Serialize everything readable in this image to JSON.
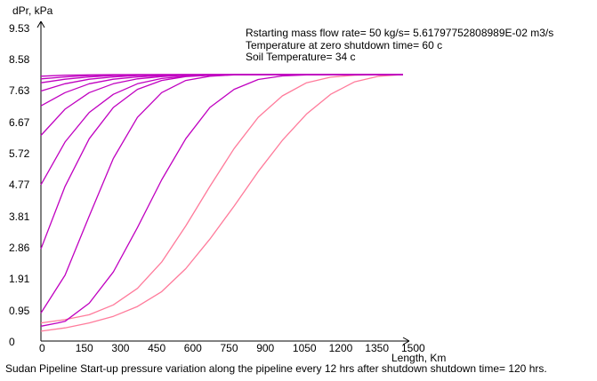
{
  "chart_data": {
    "type": "line",
    "ylabel": "dPr, kPa",
    "xlabel": "Length, Km",
    "y_ticks": [
      "9.53",
      "8.58",
      "7.63",
      "6.67",
      "5.72",
      "4.77",
      "3.81",
      "2.86",
      "1.91",
      "0.95",
      "0"
    ],
    "x_ticks": [
      "0",
      "150",
      "300",
      "450",
      "600",
      "750",
      "900",
      "1050",
      "1200",
      "1350",
      "1500"
    ],
    "xlim": [
      0,
      1500
    ],
    "ylim": [
      0,
      9.53
    ],
    "annotations": [
      "Rstarting mass flow rate= 50 kg/s= 5.61797752808989E-02 m3/s",
      "Temperature at zero shutdown time= 60 c",
      "Soil Temperature= 34 c"
    ],
    "caption": "Sudan Pipeline Start-up pressure variation along the pipeline every 12 hrs after shutdown  shutdown time= 120 hrs.",
    "colors": {
      "curves": "#c000c0",
      "early_curves": "#ff7b9b",
      "axis": "#000000"
    },
    "series": [
      {
        "x": [
          0,
          100,
          200,
          300,
          400,
          500,
          600,
          700,
          800,
          900,
          1000,
          1100,
          1200,
          1300,
          1400,
          1500
        ],
        "values": [
          0.3,
          0.4,
          0.55,
          0.75,
          1.05,
          1.5,
          2.2,
          3.1,
          4.1,
          5.15,
          6.1,
          6.9,
          7.5,
          7.88,
          8.05,
          8.1
        ]
      },
      {
        "x": [
          0,
          100,
          200,
          300,
          400,
          500,
          600,
          700,
          800,
          900,
          1000,
          1100,
          1200,
          1300,
          1400,
          1500
        ],
        "values": [
          0.55,
          0.65,
          0.8,
          1.1,
          1.6,
          2.4,
          3.5,
          4.7,
          5.85,
          6.8,
          7.45,
          7.85,
          8.02,
          8.08,
          8.1,
          8.1
        ]
      },
      {
        "x": [
          0,
          70,
          100,
          200,
          300,
          400,
          500,
          600,
          700,
          800,
          900,
          1000,
          1100,
          1200,
          1300,
          1400,
          1500
        ],
        "values": [
          0.45,
          0.55,
          0.6,
          1.15,
          2.1,
          3.45,
          4.9,
          6.15,
          7.1,
          7.65,
          7.95,
          8.06,
          8.09,
          8.1,
          8.1,
          8.1,
          8.1
        ]
      },
      {
        "x": [
          0,
          100,
          200,
          300,
          400,
          500,
          600,
          700,
          800,
          900,
          1000,
          1100,
          1200,
          1300,
          1400,
          1500
        ],
        "values": [
          0.85,
          2.0,
          3.8,
          5.55,
          6.8,
          7.55,
          7.92,
          8.05,
          8.09,
          8.1,
          8.1,
          8.1,
          8.1,
          8.1,
          8.1,
          8.1
        ]
      },
      {
        "x": [
          0,
          100,
          200,
          300,
          400,
          500,
          600,
          700,
          800,
          900,
          1000,
          1100,
          1200,
          1300,
          1400,
          1500
        ],
        "values": [
          2.8,
          4.7,
          6.15,
          7.1,
          7.65,
          7.92,
          8.04,
          8.08,
          8.1,
          8.1,
          8.1,
          8.1,
          8.1,
          8.1,
          8.1,
          8.1
        ]
      },
      {
        "x": [
          0,
          100,
          200,
          300,
          400,
          500,
          600,
          700,
          800,
          900,
          1000,
          1100,
          1200,
          1300,
          1400,
          1500
        ],
        "values": [
          4.75,
          6.05,
          6.95,
          7.5,
          7.82,
          7.98,
          8.05,
          8.08,
          8.1,
          8.1,
          8.1,
          8.1,
          8.1,
          8.1,
          8.1,
          8.1
        ]
      },
      {
        "x": [
          0,
          100,
          200,
          300,
          400,
          500,
          600,
          700,
          800,
          900,
          1000,
          1100,
          1200,
          1300,
          1400,
          1500
        ],
        "values": [
          6.25,
          7.05,
          7.55,
          7.82,
          7.97,
          8.04,
          8.08,
          8.09,
          8.1,
          8.1,
          8.1,
          8.1,
          8.1,
          8.1,
          8.1,
          8.1
        ]
      },
      {
        "x": [
          0,
          100,
          200,
          300,
          400,
          500,
          600,
          700,
          800,
          900,
          1000,
          1100,
          1200,
          1300,
          1400,
          1500
        ],
        "values": [
          7.15,
          7.55,
          7.82,
          7.96,
          8.03,
          8.07,
          8.09,
          8.1,
          8.1,
          8.1,
          8.1,
          8.1,
          8.1,
          8.1,
          8.1,
          8.1
        ]
      },
      {
        "x": [
          0,
          100,
          200,
          300,
          400,
          500,
          600,
          700,
          800,
          900,
          1000,
          1100,
          1200,
          1300,
          1400,
          1500
        ],
        "values": [
          7.6,
          7.82,
          7.96,
          8.03,
          8.07,
          8.09,
          8.1,
          8.1,
          8.1,
          8.1,
          8.1,
          8.1,
          8.1,
          8.1,
          8.1,
          8.1
        ]
      },
      {
        "x": [
          0,
          100,
          200,
          300,
          400,
          500,
          600,
          700,
          800,
          900,
          1000,
          1100,
          1200,
          1300,
          1400,
          1500
        ],
        "values": [
          7.85,
          7.96,
          8.03,
          8.07,
          8.09,
          8.1,
          8.1,
          8.1,
          8.1,
          8.1,
          8.1,
          8.1,
          8.1,
          8.1,
          8.1,
          8.1
        ]
      },
      {
        "x": [
          0,
          100,
          200,
          300,
          400,
          500,
          600,
          700,
          800,
          900,
          1000,
          1100,
          1200,
          1300,
          1400,
          1500
        ],
        "values": [
          7.97,
          8.03,
          8.07,
          8.09,
          8.1,
          8.1,
          8.1,
          8.1,
          8.1,
          8.1,
          8.1,
          8.1,
          8.1,
          8.1,
          8.1,
          8.1
        ]
      },
      {
        "x": [
          0,
          100,
          200,
          300,
          400,
          500,
          600,
          700,
          800,
          900,
          1000,
          1100,
          1200,
          1300,
          1400,
          1500
        ],
        "values": [
          8.05,
          8.08,
          8.09,
          8.1,
          8.1,
          8.1,
          8.1,
          8.1,
          8.1,
          8.1,
          8.1,
          8.1,
          8.1,
          8.1,
          8.1,
          8.1
        ]
      }
    ]
  }
}
